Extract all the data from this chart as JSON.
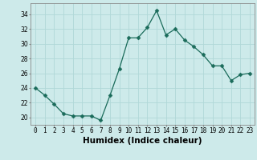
{
  "x": [
    0,
    1,
    2,
    3,
    4,
    5,
    6,
    7,
    8,
    9,
    10,
    11,
    12,
    13,
    14,
    15,
    16,
    17,
    18,
    19,
    20,
    21,
    22,
    23
  ],
  "y": [
    24.0,
    23.0,
    21.8,
    20.5,
    20.2,
    20.2,
    20.2,
    19.6,
    23.0,
    26.6,
    30.8,
    30.8,
    32.2,
    34.5,
    31.2,
    32.0,
    30.5,
    29.6,
    28.5,
    27.0,
    27.0,
    25.0,
    25.8,
    26.0
  ],
  "line_color": "#1a6b5a",
  "marker": "D",
  "marker_size": 2.5,
  "bg_color": "#cdeaea",
  "grid_color": "#b0d8d8",
  "xlabel": "Humidex (Indice chaleur)",
  "xlim": [
    -0.5,
    23.5
  ],
  "ylim": [
    19.0,
    35.5
  ],
  "yticks": [
    20,
    22,
    24,
    26,
    28,
    30,
    32,
    34
  ],
  "xticks": [
    0,
    1,
    2,
    3,
    4,
    5,
    6,
    7,
    8,
    9,
    10,
    11,
    12,
    13,
    14,
    15,
    16,
    17,
    18,
    19,
    20,
    21,
    22,
    23
  ],
  "tick_label_fontsize": 5.5,
  "xlabel_fontsize": 7.5,
  "spine_color": "#888888"
}
